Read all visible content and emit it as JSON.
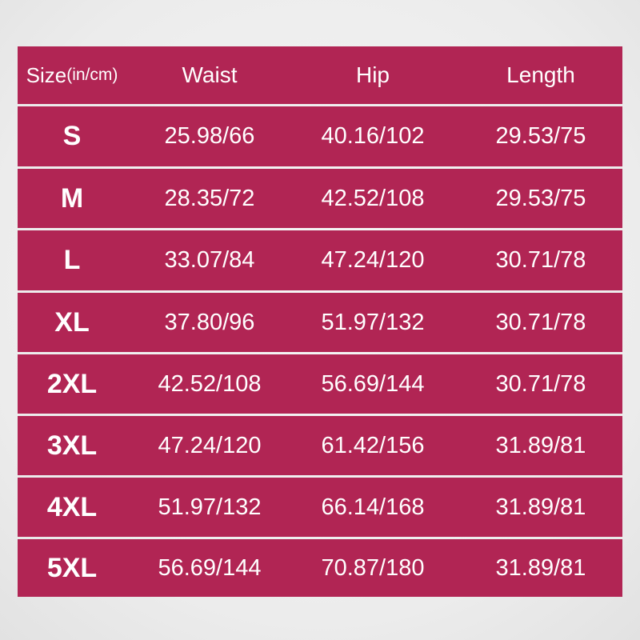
{
  "colors": {
    "row_background": "#b12554",
    "text": "#ffffff",
    "divider": "#e8e8e8"
  },
  "header": {
    "size_label": "Size",
    "size_unit": "(in/cm)",
    "columns": [
      "Waist",
      "Hip",
      "Length"
    ]
  },
  "rows": [
    {
      "size": "S",
      "waist": "25.98/66",
      "hip": "40.16/102",
      "length": "29.53/75"
    },
    {
      "size": "M",
      "waist": "28.35/72",
      "hip": "42.52/108",
      "length": "29.53/75"
    },
    {
      "size": "L",
      "waist": "33.07/84",
      "hip": "47.24/120",
      "length": "30.71/78"
    },
    {
      "size": "XL",
      "waist": "37.80/96",
      "hip": "51.97/132",
      "length": "30.71/78"
    },
    {
      "size": "2XL",
      "waist": "42.52/108",
      "hip": "56.69/144",
      "length": "30.71/78"
    },
    {
      "size": "3XL",
      "waist": "47.24/120",
      "hip": "61.42/156",
      "length": "31.89/81"
    },
    {
      "size": "4XL",
      "waist": "51.97/132",
      "hip": "66.14/168",
      "length": "31.89/81"
    },
    {
      "size": "5XL",
      "waist": "56.69/144",
      "hip": "70.87/180",
      "length": "31.89/81"
    }
  ]
}
